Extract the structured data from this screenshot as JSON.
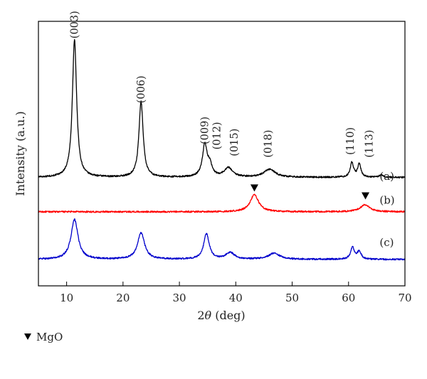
{
  "chart_data": {
    "type": "line",
    "title": "",
    "xlabel": "2θ (deg)",
    "xlabel_parts": {
      "base": "2",
      "italic": "θ",
      "unit": " (deg)"
    },
    "ylabel": "Intensity (a.u.)",
    "xlim": [
      5,
      70
    ],
    "xticks": [
      10,
      20,
      30,
      40,
      50,
      60,
      70
    ],
    "yticks": "none",
    "grid": false,
    "series": [
      {
        "name": "(a)",
        "color": "#000000",
        "baseline": 0.59,
        "peaks": [
          {
            "x": 11.4,
            "h": 0.52,
            "w": 0.45
          },
          {
            "x": 23.2,
            "h": 0.285,
            "w": 0.45
          },
          {
            "x": 34.5,
            "h": 0.12,
            "w": 0.5
          },
          {
            "x": 35.4,
            "h": 0.04,
            "w": 0.5
          },
          {
            "x": 38.7,
            "h": 0.035,
            "w": 0.9
          },
          {
            "x": 46.0,
            "h": 0.03,
            "w": 1.2
          },
          {
            "x": 60.6,
            "h": 0.055,
            "w": 0.35
          },
          {
            "x": 61.9,
            "h": 0.05,
            "w": 0.35
          },
          {
            "x": 65.8,
            "h": 0.01,
            "w": 0.4
          }
        ]
      },
      {
        "name": "(b)",
        "color": "#ff0000",
        "baseline": 0.72,
        "peaks": [
          {
            "x": 43.3,
            "h": 0.065,
            "w": 0.9
          },
          {
            "x": 62.9,
            "h": 0.027,
            "w": 1.0
          }
        ]
      },
      {
        "name": "(c)",
        "color": "#0000cc",
        "baseline": 0.9,
        "peaks": [
          {
            "x": 11.4,
            "h": 0.15,
            "w": 0.75
          },
          {
            "x": 23.2,
            "h": 0.1,
            "w": 0.75
          },
          {
            "x": 34.8,
            "h": 0.095,
            "w": 0.6
          },
          {
            "x": 39.0,
            "h": 0.025,
            "w": 0.9
          },
          {
            "x": 46.8,
            "h": 0.023,
            "w": 1.2
          },
          {
            "x": 60.7,
            "h": 0.045,
            "w": 0.4
          },
          {
            "x": 61.9,
            "h": 0.03,
            "w": 0.4
          }
        ]
      }
    ],
    "annotations": [
      {
        "text": "(003)",
        "x": 11.4,
        "y": 0.065
      },
      {
        "text": "(006)",
        "x": 23.2,
        "y": 0.31
      },
      {
        "text": "(009)",
        "x": 34.5,
        "y": 0.465
      },
      {
        "text": "(012)",
        "x": 36.6,
        "y": 0.485
      },
      {
        "text": "(015)",
        "x": 39.7,
        "y": 0.51
      },
      {
        "text": "(018)",
        "x": 45.7,
        "y": 0.515
      },
      {
        "text": "(110)",
        "x": 60.3,
        "y": 0.505
      },
      {
        "text": "(113)",
        "x": 63.6,
        "y": 0.515
      }
    ],
    "markers": [
      {
        "symbol": "triangle-down",
        "x": 43.3,
        "y": 0.63
      },
      {
        "symbol": "triangle-down",
        "x": 63.0,
        "y": 0.66
      }
    ],
    "curve_labels": [
      {
        "text": "(a)",
        "x": 65.5,
        "y": 0.6
      },
      {
        "text": "(b)",
        "x": 65.5,
        "y": 0.69
      },
      {
        "text": "(c)",
        "x": 65.5,
        "y": 0.85
      }
    ]
  },
  "legend": {
    "marker_label": "MgO",
    "marker": "triangle-down"
  }
}
